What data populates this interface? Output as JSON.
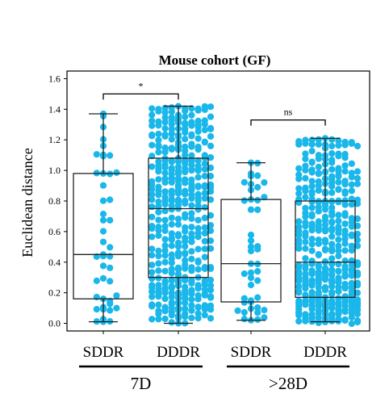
{
  "chart_data": {
    "type": "box",
    "title": "Mouse cohort (GF)",
    "xlabel": "",
    "ylabel": "Euclidean distance",
    "ylim": [
      -0.05,
      1.65
    ],
    "yticks": [
      "0.0",
      "0.2",
      "0.4",
      "0.6",
      "0.8",
      "1.0",
      "1.2",
      "1.4",
      "1.6"
    ],
    "categories": [
      "SDDR",
      "DDDR",
      "SDDR",
      "DDDR"
    ],
    "groups": [
      {
        "label": "7D",
        "members": [
          0,
          1
        ]
      },
      {
        "label": ">28D",
        "members": [
          2,
          3
        ]
      }
    ],
    "boxes": [
      {
        "category": "SDDR",
        "group": "7D",
        "min": 0.01,
        "q1": 0.16,
        "median": 0.45,
        "q3": 0.98,
        "max": 1.37,
        "n": 45
      },
      {
        "category": "DDDR",
        "group": "7D",
        "min": 0.0,
        "q1": 0.3,
        "median": 0.75,
        "q3": 1.08,
        "max": 1.42,
        "n": 420
      },
      {
        "category": "SDDR",
        "group": ">28D",
        "min": 0.02,
        "q1": 0.14,
        "median": 0.39,
        "q3": 0.81,
        "max": 1.05,
        "n": 45
      },
      {
        "category": "DDDR",
        "group": ">28D",
        "min": 0.01,
        "q1": 0.17,
        "median": 0.4,
        "q3": 0.8,
        "max": 1.21,
        "n": 420
      }
    ],
    "significance": [
      {
        "between": [
          0,
          1
        ],
        "label": "*",
        "y": 1.5
      },
      {
        "between": [
          2,
          3
        ],
        "label": "ns",
        "y": 1.33
      }
    ],
    "point_color": "#1ab7ea",
    "grid": false,
    "legend": "none"
  }
}
